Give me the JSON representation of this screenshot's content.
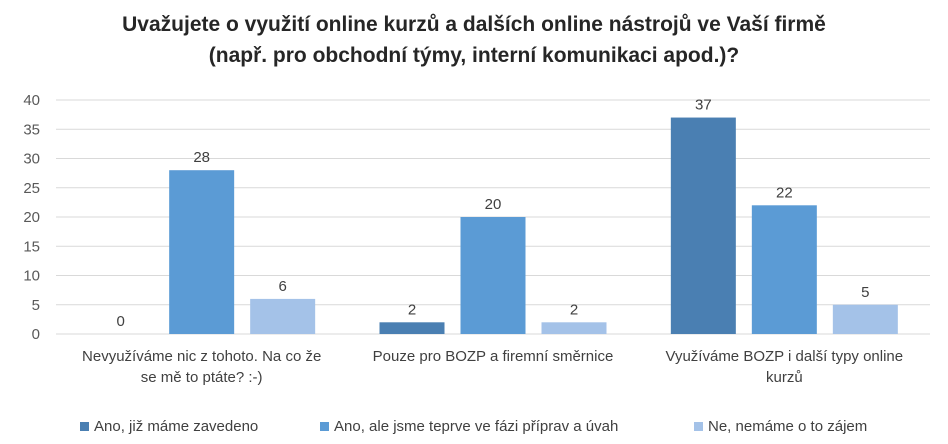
{
  "chart_data": {
    "type": "bar",
    "title": "Uvažujete o využití online kurzů a dalších online nástrojů ve Vaší firmě",
    "subtitle": "(např. pro obchodní týmy, interní komunikaci apod.)?",
    "categories": [
      [
        "Nevyužíváme nic z tohoto. Na co že",
        "se mě to ptáte? :-)"
      ],
      [
        "Pouze pro BOZP a firemní směrnice"
      ],
      [
        "Využíváme BOZP i další typy online",
        "kurzů"
      ]
    ],
    "series": [
      {
        "name": "Ano, již máme zavedeno",
        "color": "#4a7fb2",
        "values": [
          0,
          2,
          37
        ]
      },
      {
        "name": "Ano, ale jsme teprve ve fázi příprav a úvah",
        "color": "#5b9bd5",
        "values": [
          28,
          20,
          22
        ]
      },
      {
        "name": "Ne, nemáme o to zájem",
        "color": "#a4c2e8",
        "values": [
          6,
          2,
          5
        ]
      }
    ],
    "ylim": [
      0,
      40
    ],
    "yticks": [
      0,
      5,
      10,
      15,
      20,
      25,
      30,
      35,
      40
    ],
    "grid": true,
    "legend_position": "bottom"
  }
}
